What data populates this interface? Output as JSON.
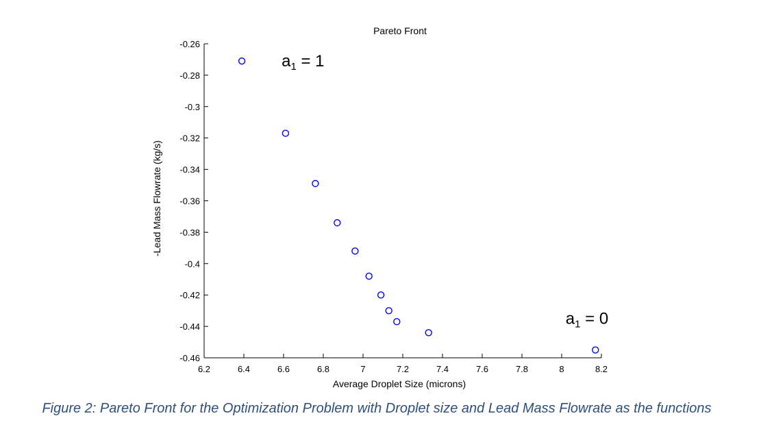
{
  "chart_data": {
    "type": "scatter",
    "title": "Pareto Front",
    "xlabel": "Average Droplet Size (microns)",
    "ylabel": "-Lead Mass Flowrate (kg/s)",
    "xlim": [
      6.2,
      8.2
    ],
    "ylim": [
      -0.46,
      -0.26
    ],
    "xticks": [
      "6.2",
      "6.4",
      "6.6",
      "6.8",
      "7",
      "7.2",
      "7.4",
      "7.6",
      "7.8",
      "8",
      "8.2"
    ],
    "yticks": [
      "-0.26",
      "-0.28",
      "-0.3",
      "-0.32",
      "-0.34",
      "-0.36",
      "-0.38",
      "-0.4",
      "-0.42",
      "-0.44",
      "-0.46"
    ],
    "marker_color": "#0000ff",
    "points": [
      {
        "x": 6.39,
        "y": -0.271
      },
      {
        "x": 6.61,
        "y": -0.317
      },
      {
        "x": 6.76,
        "y": -0.349
      },
      {
        "x": 6.87,
        "y": -0.374
      },
      {
        "x": 6.96,
        "y": -0.392
      },
      {
        "x": 7.03,
        "y": -0.408
      },
      {
        "x": 7.09,
        "y": -0.42
      },
      {
        "x": 7.13,
        "y": -0.43
      },
      {
        "x": 7.17,
        "y": -0.437
      },
      {
        "x": 7.33,
        "y": -0.444
      },
      {
        "x": 8.17,
        "y": -0.455
      }
    ],
    "annotations": [
      {
        "base": "a",
        "sub": "1",
        "rest": " = 1",
        "x": 6.59,
        "y": -0.271
      },
      {
        "base": "a",
        "sub": "1",
        "rest": " = 0",
        "x": 8.02,
        "y": -0.435
      }
    ]
  },
  "caption": "Figure 2: Pareto Front for the Optimization Problem with Droplet size and Lead Mass Flowrate as the functions"
}
